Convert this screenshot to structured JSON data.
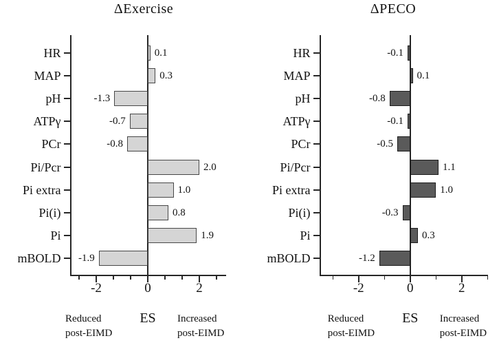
{
  "colors": {
    "background": "#ffffff",
    "axis": "#262626",
    "text": "#111111",
    "light_bar_fill": "#d5d5d5",
    "light_bar_stroke": "#474747",
    "dark_bar_fill": "#5a5a5a",
    "dark_bar_stroke": "#1c1c1c"
  },
  "chart_data": [
    {
      "type": "bar",
      "orientation": "horizontal",
      "title": "ΔExercise",
      "categories": [
        "HR",
        "MAP",
        "pH",
        "ATPγ",
        "PCr",
        "Pi/Pcr",
        "Pi extra",
        "Pi(i)",
        "Pi",
        "mBOLD"
      ],
      "values": [
        0.1,
        0.3,
        -1.3,
        -0.7,
        -0.8,
        2.0,
        1.0,
        0.8,
        1.9,
        -1.9
      ],
      "value_labels": [
        "0.1",
        "0.3",
        "-1.3",
        "-0.7",
        "-0.8",
        "2.0",
        "1.0",
        "0.8",
        "1.9",
        "-1.9"
      ],
      "xlim": [
        -3,
        3
      ],
      "tick_values": [
        -2.667,
        -2,
        -1.333,
        -0.667,
        0,
        0.667,
        1.333,
        2,
        2.667
      ],
      "major_tick_values": [
        -2,
        0,
        2
      ],
      "x_tick_labels": [
        {
          "value": -2,
          "label": "-2"
        },
        {
          "value": 0,
          "label": "0"
        },
        {
          "value": 2,
          "label": "2"
        }
      ],
      "xlabel": "ES",
      "annotations": {
        "left_line1": "Reduced",
        "left_line2": "post-EIMD",
        "center": "ES",
        "right_line1": "Increased",
        "right_line2": "post-EIMD"
      },
      "bar_fill": "#d5d5d5",
      "bar_stroke": "#474747",
      "grid": false,
      "legend": "none"
    },
    {
      "type": "bar",
      "orientation": "horizontal",
      "title": "ΔPECO",
      "categories": [
        "HR",
        "MAP",
        "pH",
        "ATPγ",
        "PCr",
        "Pi/Pcr",
        "Pi extra",
        "Pi(i)",
        "Pi",
        "mBOLD"
      ],
      "values": [
        -0.1,
        0.1,
        -0.8,
        -0.1,
        -0.5,
        1.1,
        1.0,
        -0.3,
        0.3,
        -1.2
      ],
      "value_labels": [
        "-0.1",
        "0.1",
        "-0.8",
        "-0.1",
        "-0.5",
        "1.1",
        "1.0",
        "-0.3",
        "0.3",
        "-1.2"
      ],
      "xlim": [
        -3.5,
        3
      ],
      "tick_values": [
        -3,
        -2,
        -1,
        0,
        1,
        2,
        3
      ],
      "major_tick_values": [
        -2,
        0,
        2
      ],
      "x_tick_labels": [
        {
          "value": -2,
          "label": "-2"
        },
        {
          "value": 0,
          "label": "0"
        },
        {
          "value": 2,
          "label": "2"
        }
      ],
      "xlabel": "ES",
      "annotations": {
        "left_line1": "Reduced",
        "left_line2": "post-EIMD",
        "center": "ES",
        "right_line1": "Increased",
        "right_line2": "post-EIMD"
      },
      "bar_fill": "#5a5a5a",
      "bar_stroke": "#1c1c1c",
      "grid": false,
      "legend": "none"
    }
  ]
}
